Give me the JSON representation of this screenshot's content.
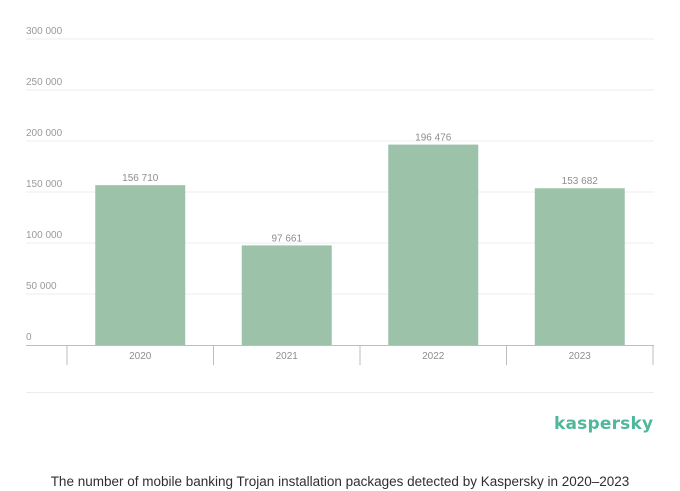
{
  "chart_data": {
    "type": "bar",
    "categories": [
      "2020",
      "2021",
      "2022",
      "2023"
    ],
    "values": [
      156710,
      97661,
      196476,
      153682
    ],
    "data_labels": [
      "156 710",
      "97 661",
      "196 476",
      "153 682"
    ],
    "ylim": [
      0,
      300000
    ],
    "yticks": [
      0,
      50000,
      100000,
      150000,
      200000,
      250000,
      300000
    ],
    "ytick_labels": [
      "0",
      "50 000",
      "100 000",
      "150 000",
      "200 000",
      "250 000",
      "300 000"
    ],
    "grid": true,
    "bar_color": "#9cc3aa"
  },
  "logo_text": "kaspersky",
  "logo_color": "#4fb89a",
  "caption": "The number of mobile banking Trojan installation packages detected by Kaspersky in 2020–2023"
}
